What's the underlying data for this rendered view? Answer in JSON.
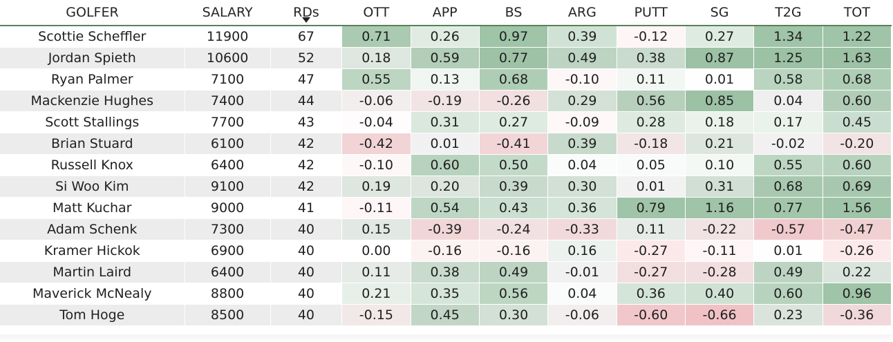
{
  "table": {
    "sort_column": "RDs",
    "columns": [
      "GOLFER",
      "SALARY",
      "RDs",
      "OTT",
      "APP",
      "BS",
      "ARG",
      "PUTT",
      "SG",
      "T2G",
      "TOT"
    ],
    "rows": [
      [
        "Scottie Scheffler",
        "11900",
        "67",
        "0.71",
        "0.26",
        "0.97",
        "0.39",
        "-0.12",
        "0.27",
        "1.34",
        "1.22"
      ],
      [
        "Jordan Spieth",
        "10600",
        "52",
        "0.18",
        "0.59",
        "0.77",
        "0.49",
        "0.38",
        "0.87",
        "1.25",
        "1.63"
      ],
      [
        "Ryan Palmer",
        "7100",
        "47",
        "0.55",
        "0.13",
        "0.68",
        "-0.10",
        "0.11",
        "0.01",
        "0.58",
        "0.68"
      ],
      [
        "Mackenzie Hughes",
        "7400",
        "44",
        "-0.06",
        "-0.19",
        "-0.26",
        "0.29",
        "0.56",
        "0.85",
        "0.04",
        "0.60"
      ],
      [
        "Scott Stallings",
        "7700",
        "43",
        "-0.04",
        "0.31",
        "0.27",
        "-0.09",
        "0.28",
        "0.18",
        "0.17",
        "0.45"
      ],
      [
        "Brian Stuard",
        "6100",
        "42",
        "-0.42",
        "0.01",
        "-0.41",
        "0.39",
        "-0.18",
        "0.21",
        "-0.02",
        "-0.20"
      ],
      [
        "Russell Knox",
        "6400",
        "42",
        "-0.10",
        "0.60",
        "0.50",
        "0.04",
        "0.05",
        "0.10",
        "0.55",
        "0.60"
      ],
      [
        "Si Woo Kim",
        "9100",
        "42",
        "0.19",
        "0.20",
        "0.39",
        "0.30",
        "0.01",
        "0.31",
        "0.68",
        "0.69"
      ],
      [
        "Matt Kuchar",
        "9000",
        "41",
        "-0.11",
        "0.54",
        "0.43",
        "0.36",
        "0.79",
        "1.16",
        "0.77",
        "1.56"
      ],
      [
        "Adam Schenk",
        "7300",
        "40",
        "0.15",
        "-0.39",
        "-0.24",
        "-0.33",
        "0.11",
        "-0.22",
        "-0.57",
        "-0.47"
      ],
      [
        "Kramer Hickok",
        "6900",
        "40",
        "0.00",
        "-0.16",
        "-0.16",
        "0.16",
        "-0.27",
        "-0.11",
        "0.01",
        "-0.26"
      ],
      [
        "Martin Laird",
        "6400",
        "40",
        "0.11",
        "0.38",
        "0.49",
        "-0.01",
        "-0.27",
        "-0.28",
        "0.49",
        "0.22"
      ],
      [
        "Maverick McNealy",
        "8800",
        "40",
        "0.21",
        "0.35",
        "0.56",
        "0.04",
        "0.36",
        "0.40",
        "0.60",
        "0.96"
      ],
      [
        "Tom Hoge",
        "8500",
        "40",
        "-0.15",
        "0.45",
        "0.30",
        "-0.06",
        "-0.60",
        "-0.66",
        "0.23",
        "-0.36"
      ]
    ]
  },
  "colors": {
    "positive": "#7fb08a",
    "negative": "#f0a0a6",
    "header_rule": "#5a7f5a"
  }
}
